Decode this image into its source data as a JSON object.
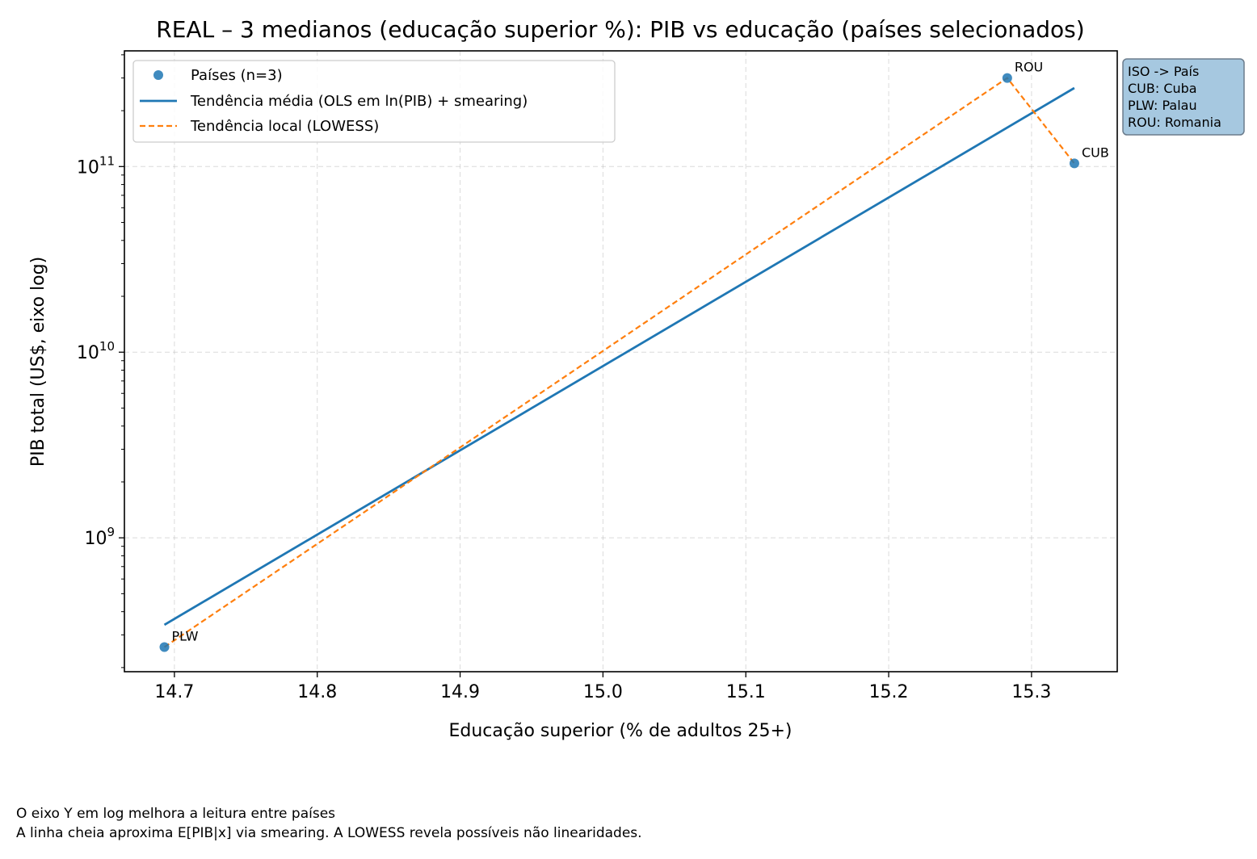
{
  "chart_data": {
    "type": "scatter",
    "title": "REAL – 3 medianos (educação superior %): PIB vs educação (países selecionados)",
    "xlabel": "Educação superior (% de adultos 25+)",
    "ylabel": "PIB total (US$, eixo log)",
    "xlim": [
      14.665,
      15.36
    ],
    "ylim": [
      190000000,
      420000000000
    ],
    "y_scale": "log",
    "grid": true,
    "legend_position": "top-left",
    "x_ticks": [
      "14.7",
      "14.8",
      "14.9",
      "15.0",
      "15.1",
      "15.2",
      "15.3"
    ],
    "y_ticks": [
      {
        "base": "10",
        "exp": "9",
        "value": 1000000000
      },
      {
        "base": "10",
        "exp": "10",
        "value": 10000000000
      },
      {
        "base": "10",
        "exp": "11",
        "value": 100000000000
      }
    ],
    "series": [
      {
        "name": "Países (n=3)",
        "kind": "scatter",
        "color": "#1f77b4",
        "points": [
          {
            "label": "PLW",
            "x": 14.693,
            "y": 258000000
          },
          {
            "label": "ROU",
            "x": 15.283,
            "y": 300000000000
          },
          {
            "label": "CUB",
            "x": 15.33,
            "y": 104000000000
          }
        ]
      },
      {
        "name": "Tendência média (OLS em ln(PIB) + smearing)",
        "kind": "line",
        "color": "#1f77b4",
        "dash": "solid",
        "x": [
          14.693,
          15.33
        ],
        "y": [
          340000000,
          265000000000
        ]
      },
      {
        "name": "Tendência local (LOWESS)",
        "kind": "line",
        "color": "#ff7f0e",
        "dash": "dashed",
        "x": [
          14.693,
          15.283,
          15.33
        ],
        "y": [
          258000000,
          300000000000,
          104000000000
        ]
      }
    ],
    "side_box": {
      "title": "ISO -> País",
      "lines": [
        "CUB: Cuba",
        "PLW: Palau",
        "ROU: Romania"
      ],
      "background": "#a6c8e0"
    }
  },
  "footnotes": [
    "O eixo Y em log melhora a leitura entre países",
    "A linha cheia aproxima E[PIB|x] via smearing. A LOWESS revela possíveis não linearidades."
  ]
}
